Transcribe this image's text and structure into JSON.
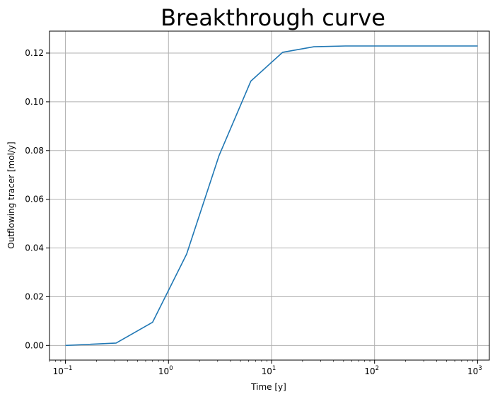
{
  "chart_data": {
    "type": "line",
    "title": "Breakthrough curve",
    "xlabel": "Time [y]",
    "ylabel": "Outflowing tracer [mol/y]",
    "xscale": "log",
    "xlim": [
      0.07,
      1300
    ],
    "ylim": [
      -0.006,
      0.129
    ],
    "grid": true,
    "color": "#1f77b4",
    "x_ticks": [
      {
        "base": "10",
        "exp": "−1",
        "value": 0.1
      },
      {
        "base": "10",
        "exp": "0",
        "value": 1
      },
      {
        "base": "10",
        "exp": "1",
        "value": 10
      },
      {
        "base": "10",
        "exp": "2",
        "value": 100
      },
      {
        "base": "10",
        "exp": "3",
        "value": 1000
      }
    ],
    "y_ticks": [
      {
        "label": "0.00",
        "value": 0.0
      },
      {
        "label": "0.02",
        "value": 0.02
      },
      {
        "label": "0.04",
        "value": 0.04
      },
      {
        "label": "0.06",
        "value": 0.06
      },
      {
        "label": "0.08",
        "value": 0.08
      },
      {
        "label": "0.10",
        "value": 0.1
      },
      {
        "label": "0.12",
        "value": 0.12
      }
    ],
    "series": [
      {
        "x": [
          0.1,
          0.31,
          0.7,
          1.5,
          3.1,
          6.3,
          12.8,
          25.8,
          51.9,
          100,
          1000
        ],
        "y": [
          0.0,
          0.001,
          0.0095,
          0.0375,
          0.078,
          0.1085,
          0.1203,
          0.1226,
          0.1229,
          0.1229,
          0.1229
        ]
      }
    ]
  }
}
